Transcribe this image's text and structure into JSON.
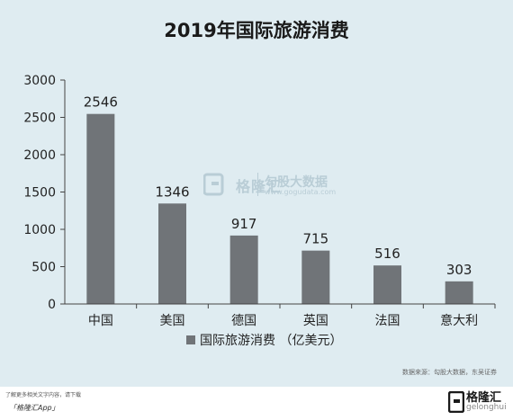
{
  "chart_data": {
    "type": "bar",
    "title": "2019年国际旅游消费",
    "categories": [
      "中国",
      "美国",
      "德国",
      "英国",
      "法国",
      "意大利"
    ],
    "series": [
      {
        "name": "国际旅游消费 （亿美元）",
        "values": [
          2546,
          1346,
          917,
          715,
          516,
          303
        ]
      }
    ],
    "data_labels": [
      "2546",
      "1346",
      "917",
      "715",
      "516",
      "303"
    ],
    "yticks": [
      "0",
      "500",
      "1000",
      "1500",
      "2000",
      "2500",
      "3000"
    ],
    "ylim": [
      0,
      3000
    ],
    "grid": false,
    "legend_position": "bottom",
    "bar_color": "#707478"
  },
  "watermark": {
    "brand": "格隆汇",
    "secondary": "勾股大数据",
    "url": "www.gogudata.com"
  },
  "source": "数据来源：勾股大数据，东吴证券",
  "footer": {
    "download_text": "了解更多相关文字内容，请下载",
    "app_name": "「格隆汇App」",
    "brand_name": "格隆汇",
    "brand_sub": "gelonghui"
  }
}
